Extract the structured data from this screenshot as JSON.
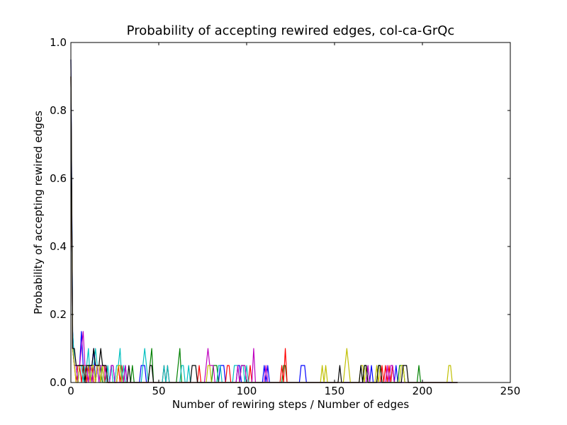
{
  "chart_data": {
    "type": "line",
    "title": "Probability of accepting rewired edges, col-ca-GrQc",
    "xlabel": "Number of rewiring steps / Number of edges",
    "ylabel": "Probability of accepting rewired edges",
    "xlim": [
      0,
      250
    ],
    "ylim": [
      0.0,
      1.0
    ],
    "xticks": [
      0,
      50,
      100,
      150,
      200,
      250
    ],
    "xtick_labels": [
      "0",
      "50",
      "100",
      "150",
      "200",
      "250"
    ],
    "yticks": [
      0.0,
      0.2,
      0.4,
      0.6,
      0.8,
      1.0
    ],
    "ytick_labels": [
      "0.0",
      "0.2",
      "0.4",
      "0.6",
      "0.8",
      "1.0"
    ],
    "grid": false,
    "legend": "none",
    "series": [
      {
        "color": "#0000ff",
        "x": [
          0,
          1,
          2,
          3,
          4,
          5,
          6,
          7,
          8,
          9,
          10,
          11,
          12,
          13,
          14,
          15,
          16,
          17,
          18,
          19,
          20,
          22,
          23,
          24,
          25,
          26,
          30,
          31,
          32,
          33,
          34,
          39,
          40,
          41,
          42,
          43,
          44,
          45,
          46,
          84,
          85,
          86,
          87,
          88,
          94,
          95,
          96,
          97,
          109,
          110,
          111,
          112,
          113,
          130,
          131,
          132,
          133,
          134,
          168,
          169,
          170,
          171,
          172,
          182,
          183,
          184,
          185,
          186,
          220
        ],
        "y": [
          0.95,
          0.15,
          0.05,
          0.05,
          0.0,
          0.05,
          0.15,
          0.05,
          0.0,
          0.0,
          0.05,
          0.05,
          0.05,
          0.1,
          0.0,
          0.05,
          0.05,
          0.0,
          0.05,
          0.05,
          0.0,
          0.0,
          0.05,
          0.05,
          0.0,
          0.0,
          0.0,
          0.05,
          0.0,
          0.0,
          0.0,
          0.0,
          0.05,
          0.05,
          0.05,
          0.0,
          0.0,
          0.0,
          0.0,
          0.0,
          0.05,
          0.05,
          0.05,
          0.0,
          0.0,
          0.05,
          0.05,
          0.0,
          0.0,
          0.05,
          0.0,
          0.05,
          0.0,
          0.0,
          0.05,
          0.05,
          0.05,
          0.0,
          0.0,
          0.05,
          0.0,
          0.05,
          0.0,
          0.0,
          0.05,
          0.0,
          0.05,
          0.0,
          0.0
        ]
      },
      {
        "color": "#008000",
        "x": [
          0,
          1,
          2,
          3,
          4,
          5,
          6,
          7,
          8,
          9,
          10,
          11,
          12,
          13,
          14,
          15,
          16,
          17,
          18,
          19,
          20,
          21,
          22,
          26,
          27,
          28,
          29,
          30,
          34,
          35,
          36,
          44,
          45,
          46,
          47,
          48,
          60,
          61,
          62,
          63,
          64,
          80,
          81,
          82,
          83,
          84,
          96,
          97,
          98,
          99,
          100,
          120,
          121,
          122,
          123,
          124,
          166,
          167,
          168,
          169,
          170,
          174,
          175,
          176,
          177,
          178,
          186,
          187,
          188,
          189,
          190,
          197,
          198,
          199,
          200,
          220
        ],
        "y": [
          0.9,
          0.1,
          0.05,
          0.05,
          0.0,
          0.05,
          0.05,
          0.05,
          0.0,
          0.0,
          0.05,
          0.05,
          0.0,
          0.05,
          0.0,
          0.05,
          0.05,
          0.05,
          0.0,
          0.0,
          0.05,
          0.0,
          0.0,
          0.0,
          0.05,
          0.05,
          0.0,
          0.0,
          0.0,
          0.05,
          0.0,
          0.0,
          0.05,
          0.1,
          0.0,
          0.0,
          0.0,
          0.05,
          0.1,
          0.0,
          0.0,
          0.0,
          0.05,
          0.05,
          0.05,
          0.0,
          0.0,
          0.05,
          0.05,
          0.05,
          0.0,
          0.0,
          0.05,
          0.05,
          0.0,
          0.0,
          0.0,
          0.05,
          0.05,
          0.0,
          0.0,
          0.0,
          0.05,
          0.05,
          0.0,
          0.0,
          0.0,
          0.05,
          0.05,
          0.05,
          0.0,
          0.0,
          0.05,
          0.0,
          0.0,
          0.0
        ]
      },
      {
        "color": "#ff0000",
        "x": [
          0,
          1,
          2,
          3,
          4,
          5,
          6,
          7,
          8,
          9,
          10,
          11,
          12,
          13,
          14,
          15,
          16,
          17,
          18,
          19,
          20,
          21,
          26,
          27,
          28,
          29,
          30,
          52,
          53,
          54,
          55,
          56,
          72,
          73,
          74,
          88,
          89,
          90,
          91,
          92,
          101,
          102,
          103,
          104,
          105,
          119,
          120,
          121,
          122,
          123,
          124,
          176,
          177,
          178,
          179,
          180,
          181,
          182,
          183,
          184,
          185,
          220
        ],
        "y": [
          0.9,
          0.1,
          0.05,
          0.0,
          0.05,
          0.05,
          0.0,
          0.05,
          0.05,
          0.0,
          0.05,
          0.0,
          0.05,
          0.0,
          0.0,
          0.05,
          0.05,
          0.0,
          0.05,
          0.05,
          0.0,
          0.0,
          0.0,
          0.05,
          0.0,
          0.05,
          0.0,
          0.0,
          0.05,
          0.0,
          0.05,
          0.0,
          0.0,
          0.05,
          0.0,
          0.0,
          0.05,
          0.05,
          0.0,
          0.0,
          0.0,
          0.05,
          0.0,
          0.0,
          0.0,
          0.0,
          0.05,
          0.0,
          0.1,
          0.0,
          0.0,
          0.0,
          0.05,
          0.0,
          0.05,
          0.0,
          0.05,
          0.0,
          0.05,
          0.0,
          0.0,
          0.0
        ]
      },
      {
        "color": "#00bfbf",
        "x": [
          0,
          1,
          2,
          3,
          4,
          5,
          6,
          7,
          8,
          9,
          10,
          11,
          12,
          13,
          14,
          15,
          16,
          17,
          18,
          19,
          20,
          21,
          22,
          23,
          24,
          25,
          26,
          27,
          28,
          29,
          30,
          31,
          40,
          41,
          42,
          43,
          44,
          45,
          46,
          52,
          53,
          54,
          55,
          56,
          62,
          63,
          64,
          65,
          66,
          67,
          68,
          69,
          83,
          84,
          85,
          86,
          87,
          92,
          93,
          94,
          95,
          96,
          97,
          98,
          99,
          100,
          101,
          102,
          220
        ],
        "y": [
          0.9,
          0.15,
          0.05,
          0.05,
          0.0,
          0.05,
          0.05,
          0.0,
          0.05,
          0.05,
          0.1,
          0.0,
          0.05,
          0.05,
          0.1,
          0.05,
          0.0,
          0.0,
          0.05,
          0.0,
          0.0,
          0.05,
          0.0,
          0.05,
          0.0,
          0.0,
          0.05,
          0.05,
          0.1,
          0.0,
          0.05,
          0.0,
          0.0,
          0.05,
          0.1,
          0.05,
          0.0,
          0.0,
          0.0,
          0.0,
          0.05,
          0.0,
          0.05,
          0.0,
          0.0,
          0.05,
          0.05,
          0.0,
          0.0,
          0.05,
          0.0,
          0.0,
          0.0,
          0.05,
          0.05,
          0.0,
          0.0,
          0.0,
          0.05,
          0.05,
          0.05,
          0.0,
          0.05,
          0.05,
          0.0,
          0.05,
          0.0,
          0.0,
          0.0
        ]
      },
      {
        "color": "#bf00bf",
        "x": [
          0,
          1,
          2,
          3,
          4,
          5,
          6,
          7,
          8,
          9,
          10,
          11,
          12,
          13,
          14,
          15,
          16,
          17,
          18,
          19,
          20,
          21,
          22,
          23,
          24,
          25,
          30,
          31,
          32,
          33,
          34,
          76,
          77,
          78,
          79,
          80,
          81,
          82,
          83,
          94,
          95,
          96,
          97,
          98,
          99,
          100,
          101,
          102,
          103,
          104,
          105,
          109,
          110,
          111,
          112,
          113,
          168,
          169,
          170,
          171,
          172,
          173,
          174,
          179,
          180,
          181,
          182,
          183,
          184,
          220
        ],
        "y": [
          0.9,
          0.1,
          0.05,
          0.05,
          0.0,
          0.05,
          0.1,
          0.15,
          0.05,
          0.05,
          0.0,
          0.05,
          0.0,
          0.05,
          0.05,
          0.05,
          0.0,
          0.05,
          0.05,
          0.0,
          0.05,
          0.0,
          0.0,
          0.05,
          0.05,
          0.0,
          0.0,
          0.05,
          0.0,
          0.0,
          0.0,
          0.0,
          0.05,
          0.1,
          0.05,
          0.05,
          0.05,
          0.0,
          0.0,
          0.0,
          0.05,
          0.0,
          0.05,
          0.05,
          0.05,
          0.0,
          0.0,
          0.0,
          0.0,
          0.1,
          0.0,
          0.0,
          0.0,
          0.05,
          0.0,
          0.0,
          0.0,
          0.05,
          0.0,
          0.0,
          0.0,
          0.0,
          0.0,
          0.0,
          0.05,
          0.0,
          0.05,
          0.05,
          0.0,
          0.0
        ]
      },
      {
        "color": "#bfbf00",
        "x": [
          0,
          1,
          2,
          3,
          4,
          5,
          6,
          7,
          8,
          9,
          10,
          11,
          12,
          13,
          14,
          15,
          16,
          17,
          18,
          19,
          26,
          27,
          28,
          29,
          30,
          31,
          76,
          77,
          78,
          79,
          80,
          81,
          142,
          143,
          144,
          145,
          146,
          147,
          154,
          155,
          156,
          157,
          158,
          159,
          164,
          165,
          166,
          167,
          168,
          169,
          170,
          173,
          174,
          175,
          176,
          177,
          178,
          179,
          187,
          188,
          189,
          190,
          191,
          192,
          213,
          214,
          215,
          216,
          217,
          218,
          220
        ],
        "y": [
          0.9,
          0.1,
          0.05,
          0.0,
          0.0,
          0.05,
          0.05,
          0.05,
          0.0,
          0.05,
          0.05,
          0.0,
          0.05,
          0.05,
          0.0,
          0.05,
          0.05,
          0.0,
          0.05,
          0.0,
          0.0,
          0.05,
          0.05,
          0.0,
          0.0,
          0.0,
          0.0,
          0.0,
          0.05,
          0.05,
          0.0,
          0.0,
          0.0,
          0.05,
          0.0,
          0.05,
          0.0,
          0.0,
          0.0,
          0.0,
          0.05,
          0.1,
          0.05,
          0.0,
          0.0,
          0.05,
          0.05,
          0.0,
          0.05,
          0.0,
          0.0,
          0.0,
          0.05,
          0.0,
          0.05,
          0.0,
          0.0,
          0.0,
          0.0,
          0.05,
          0.05,
          0.0,
          0.0,
          0.0,
          0.0,
          0.0,
          0.05,
          0.05,
          0.0,
          0.0,
          0.0
        ]
      },
      {
        "color": "#000000",
        "x": [
          0,
          1,
          2,
          3,
          4,
          5,
          6,
          7,
          8,
          9,
          10,
          11,
          12,
          13,
          14,
          15,
          16,
          17,
          18,
          19,
          20,
          21,
          22,
          32,
          33,
          34,
          35,
          36,
          44,
          45,
          46,
          47,
          48,
          49,
          68,
          69,
          70,
          71,
          72,
          73,
          74,
          151,
          152,
          153,
          154,
          155,
          164,
          165,
          166,
          167,
          168,
          169,
          170,
          174,
          175,
          176,
          177,
          178,
          179,
          188,
          189,
          190,
          191,
          192,
          193,
          220
        ],
        "y": [
          0.95,
          0.1,
          0.1,
          0.05,
          0.05,
          0.05,
          0.05,
          0.05,
          0.0,
          0.05,
          0.05,
          0.05,
          0.05,
          0.1,
          0.05,
          0.05,
          0.05,
          0.1,
          0.05,
          0.05,
          0.05,
          0.0,
          0.0,
          0.0,
          0.05,
          0.0,
          0.0,
          0.0,
          0.0,
          0.05,
          0.05,
          0.0,
          0.0,
          0.0,
          0.0,
          0.05,
          0.05,
          0.05,
          0.0,
          0.0,
          0.0,
          0.0,
          0.0,
          0.05,
          0.0,
          0.0,
          0.0,
          0.05,
          0.0,
          0.05,
          0.05,
          0.0,
          0.0,
          0.0,
          0.05,
          0.05,
          0.0,
          0.0,
          0.0,
          0.0,
          0.05,
          0.05,
          0.05,
          0.0,
          0.0,
          0.0
        ]
      }
    ]
  }
}
